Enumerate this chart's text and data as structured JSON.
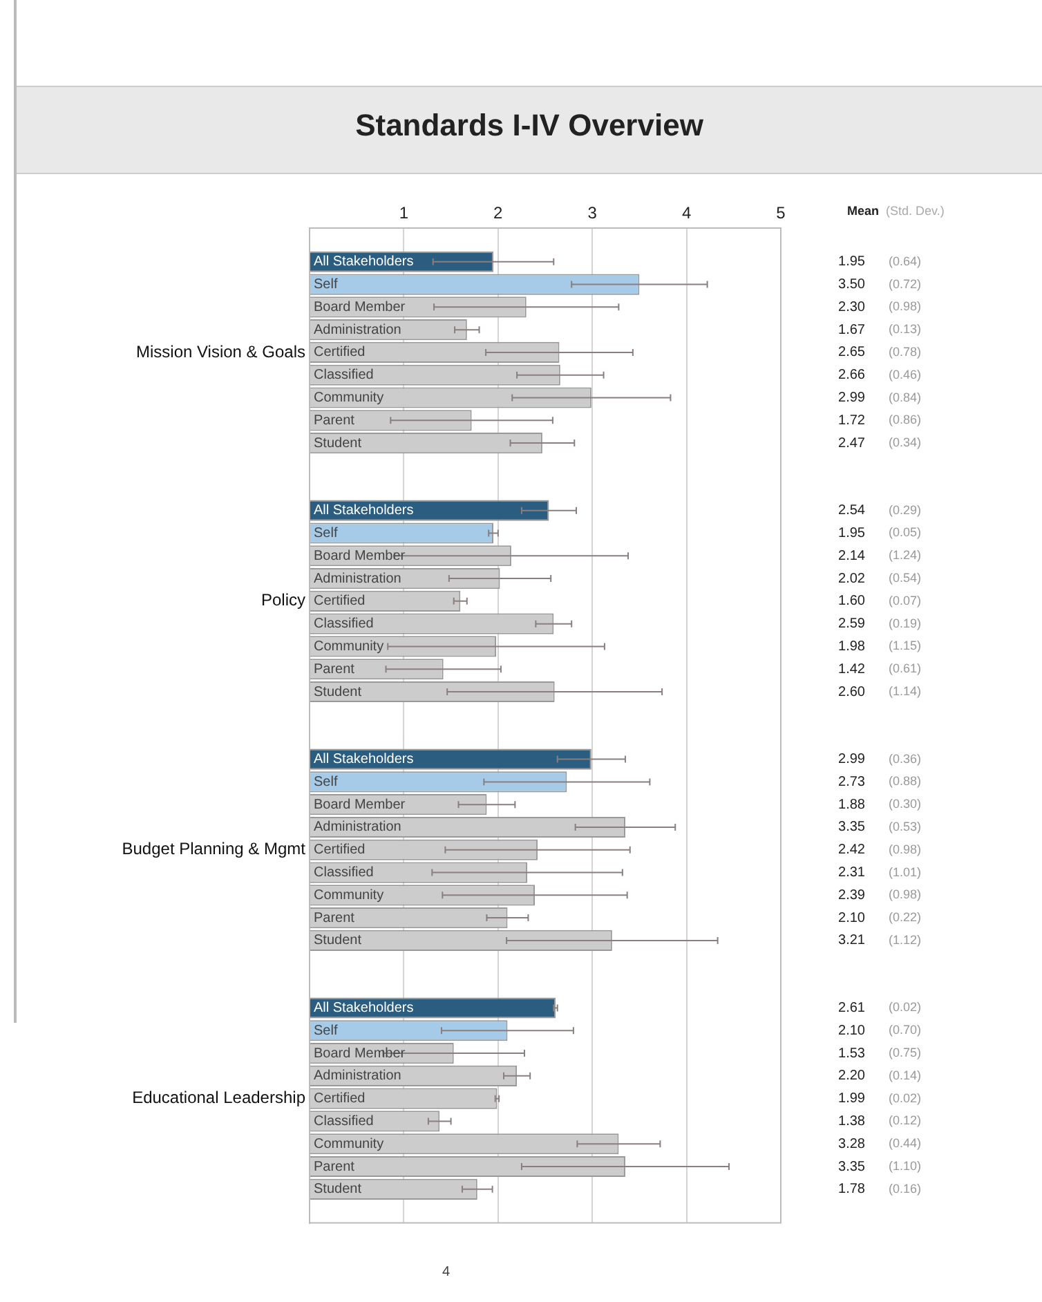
{
  "chart_data": {
    "type": "bar",
    "orientation": "horizontal",
    "title": "Standards I-IV Overview",
    "categories": [
      "Mission Vision & Goals",
      "Policy",
      "Budget Planning & Mgmt",
      "Educational Leadership"
    ],
    "series": [
      {
        "name": "All Stakeholders",
        "color": "#2a5d7f",
        "values": [
          1.95,
          2.54,
          2.99,
          2.61
        ],
        "errors": [
          0.64,
          0.29,
          0.36,
          0.02
        ],
        "value_labels": [
          "1.95 (0.64)",
          "2.54 (0.29)",
          "2.99 (0.36)",
          "2.61 (0.02)"
        ]
      },
      {
        "name": "Self",
        "color": "#a6cbe8",
        "values": [
          3.5,
          1.95,
          2.73,
          2.1
        ],
        "errors": [
          0.72,
          0.05,
          0.88,
          0.7
        ],
        "value_labels": [
          "3.50 (0.72)",
          "1.95 (0.05)",
          "2.73 (0.88)",
          "2.10 (0.70)"
        ]
      },
      {
        "name": "Board Member",
        "color": "#cccccc",
        "values": [
          2.3,
          2.14,
          1.88,
          1.53
        ],
        "errors": [
          0.98,
          1.24,
          0.3,
          0.75
        ],
        "value_labels": [
          "2.30 (0.98)",
          "2.14 (1.24)",
          "1.88 (0.30)",
          "1.53 (0.75)"
        ]
      },
      {
        "name": "Administration",
        "color": "#cccccc",
        "values": [
          1.67,
          2.02,
          3.35,
          2.2
        ],
        "errors": [
          0.13,
          0.54,
          0.53,
          0.14
        ],
        "value_labels": [
          "1.67 (0.13)",
          "2.02 (0.54)",
          "3.35 (0.53)",
          "2.20 (0.14)"
        ]
      },
      {
        "name": "Certified",
        "color": "#cccccc",
        "values": [
          2.65,
          1.6,
          2.42,
          1.99
        ],
        "errors": [
          0.78,
          0.07,
          0.98,
          0.02
        ],
        "value_labels": [
          "2.65 (0.78)",
          "1.60 (0.07)",
          "2.42 (0.98)",
          "1.99 (0.02)"
        ]
      },
      {
        "name": "Classified",
        "color": "#cccccc",
        "values": [
          2.66,
          2.59,
          2.31,
          1.38
        ],
        "errors": [
          0.46,
          0.19,
          1.01,
          0.12
        ],
        "value_labels": [
          "2.66 (0.46)",
          "2.59 (0.19)",
          "2.31 (1.01)",
          "1.38 (0.12)"
        ]
      },
      {
        "name": "Community",
        "color": "#cccccc",
        "values": [
          2.99,
          1.98,
          2.39,
          3.28
        ],
        "errors": [
          0.84,
          1.15,
          0.98,
          0.44
        ],
        "value_labels": [
          "2.99 (0.84)",
          "1.98 (1.15)",
          "2.39 (0.98)",
          "3.28 (0.44)"
        ]
      },
      {
        "name": "Parent",
        "color": "#cccccc",
        "values": [
          1.72,
          1.42,
          2.1,
          3.35
        ],
        "errors": [
          0.86,
          0.61,
          0.22,
          1.1
        ],
        "value_labels": [
          "1.72 (0.86)",
          "1.42 (0.61)",
          "2.10 (0.22)",
          "3.35 (1.10)"
        ]
      },
      {
        "name": "Student",
        "color": "#cccccc",
        "values": [
          2.47,
          2.6,
          3.21,
          1.78
        ],
        "errors": [
          0.34,
          1.14,
          1.12,
          0.16
        ],
        "value_labels": [
          "2.47 (0.34)",
          "2.60 (1.14)",
          "3.21 (1.12)",
          "1.78 (0.16)"
        ]
      }
    ],
    "xlim": [
      0,
      5
    ],
    "xticks": [
      1,
      2,
      3,
      4,
      5
    ],
    "grid": "x",
    "legend": false,
    "annotations": [
      "Mean",
      "(Std. Dev.)",
      "4"
    ]
  }
}
